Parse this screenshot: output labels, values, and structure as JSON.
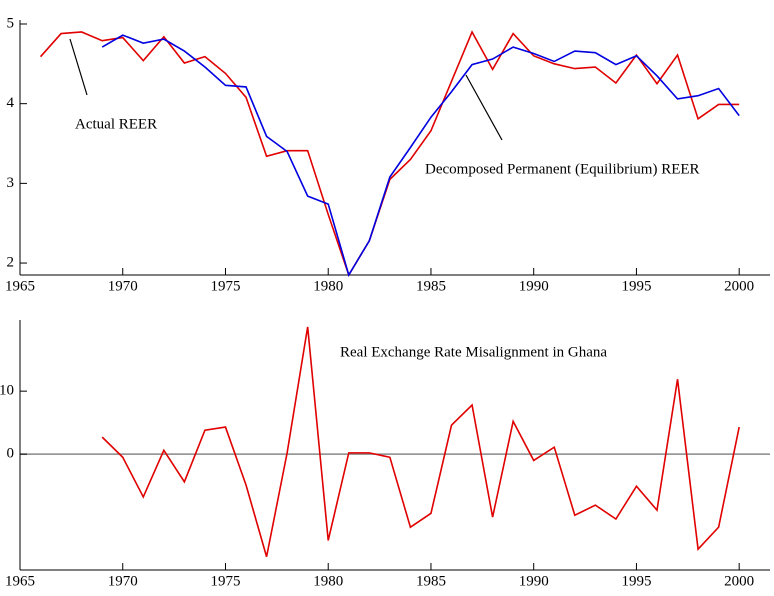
{
  "chart_data": [
    {
      "type": "line",
      "x": [
        1966,
        1967,
        1968,
        1969,
        1970,
        1971,
        1972,
        1973,
        1974,
        1975,
        1976,
        1977,
        1978,
        1979,
        1980,
        1981,
        1982,
        1983,
        1984,
        1985,
        1986,
        1987,
        1988,
        1989,
        1990,
        1991,
        1992,
        1993,
        1994,
        1995,
        1996,
        1997,
        1998,
        1999,
        2000
      ],
      "series": [
        {
          "color": "#e00000",
          "values": [
            4.59,
            4.88,
            4.9,
            4.79,
            4.83,
            4.54,
            4.84,
            4.51,
            4.59,
            4.38,
            4.08,
            3.34,
            3.41,
            3.41,
            2.61,
            1.85,
            2.28,
            3.05,
            3.3,
            3.66,
            4.28,
            4.9,
            4.43,
            4.88,
            4.6,
            4.5,
            4.44,
            4.46,
            4.26,
            4.61,
            4.25,
            4.61,
            3.81,
            3.99,
            3.99
          ]
        },
        {
          "color": "#0000e0",
          "values": [
            null,
            null,
            null,
            4.71,
            4.86,
            4.76,
            4.81,
            4.66,
            4.46,
            4.23,
            4.21,
            3.59,
            3.4,
            2.84,
            2.74,
            1.85,
            2.28,
            3.08,
            3.45,
            3.83,
            4.15,
            4.49,
            4.56,
            4.71,
            4.63,
            4.53,
            4.66,
            4.64,
            4.49,
            4.6,
            4.35,
            4.06,
            4.1,
            4.19,
            3.85
          ]
        }
      ],
      "annotations": [
        "Actual REER",
        "Decomposed Permanent (Equilibrium) REER"
      ],
      "xlim": [
        1965,
        2001.5
      ],
      "xticks": [
        1965,
        1970,
        1975,
        1980,
        1985,
        1990,
        1995,
        2000
      ],
      "ylim": [
        1.85,
        5.05
      ],
      "yticks": [
        2,
        3,
        4,
        5
      ]
    },
    {
      "type": "line",
      "title": "Real Exchange Rate Misalignment in Ghana",
      "x": [
        1969,
        1970,
        1971,
        1972,
        1973,
        1974,
        1975,
        1976,
        1977,
        1978,
        1979,
        1980,
        1981,
        1982,
        1983,
        1984,
        1985,
        1986,
        1987,
        1988,
        1989,
        1990,
        1991,
        1992,
        1993,
        1994,
        1995,
        1996,
        1997,
        1998,
        1999,
        2000
      ],
      "series": [
        {
          "color": "#e00000",
          "values": [
            2.7,
            -0.5,
            -6.8,
            0.6,
            -4.4,
            3.8,
            4.3,
            -4.9,
            -16.3,
            0.2,
            20.2,
            -13.7,
            0.2,
            0.2,
            -0.5,
            -11.6,
            -9.4,
            4.6,
            7.8,
            -10,
            5.2,
            -1,
            1.1,
            -9.7,
            -8.1,
            -10.3,
            -5.1,
            -8.9,
            11.9,
            -15.1,
            -11.6,
            4.3
          ]
        }
      ],
      "zero_line": true,
      "xlim": [
        1965,
        2001.5
      ],
      "xticks": [
        1965,
        1970,
        1975,
        1980,
        1985,
        1990,
        1995,
        2000
      ],
      "ylim": [
        -18.4,
        21.3
      ],
      "yticks": [
        0,
        10
      ]
    }
  ]
}
